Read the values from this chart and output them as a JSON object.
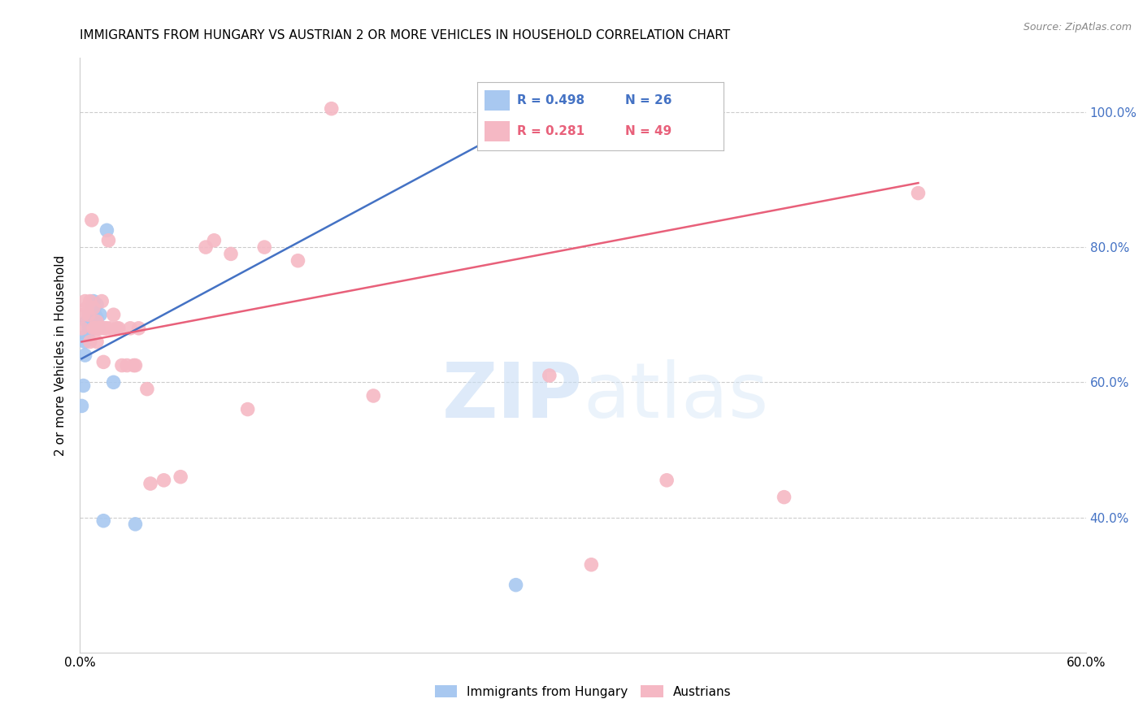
{
  "title": "IMMIGRANTS FROM HUNGARY VS AUSTRIAN 2 OR MORE VEHICLES IN HOUSEHOLD CORRELATION CHART",
  "source": "Source: ZipAtlas.com",
  "ylabel": "2 or more Vehicles in Household",
  "xlim": [
    0.0,
    0.6
  ],
  "ylim": [
    0.2,
    1.08
  ],
  "xtick_vals": [
    0.0,
    0.1,
    0.2,
    0.3,
    0.4,
    0.5,
    0.6
  ],
  "ytick_vals": [
    1.0,
    0.8,
    0.6,
    0.4
  ],
  "ytick_labels": [
    "100.0%",
    "80.0%",
    "60.0%",
    "40.0%"
  ],
  "blue_R": "0.498",
  "blue_N": "26",
  "pink_R": "0.281",
  "pink_N": "49",
  "blue_color": "#a8c8f0",
  "pink_color": "#f5b8c4",
  "blue_line_color": "#4472c4",
  "pink_line_color": "#e8607a",
  "legend_blue_label": "Immigrants from Hungary",
  "legend_pink_label": "Austrians",
  "watermark_zip": "ZIP",
  "watermark_atlas": "atlas",
  "blue_points_x": [
    0.001,
    0.002,
    0.003,
    0.003,
    0.004,
    0.004,
    0.005,
    0.005,
    0.005,
    0.006,
    0.006,
    0.007,
    0.007,
    0.008,
    0.008,
    0.009,
    0.009,
    0.01,
    0.01,
    0.011,
    0.012,
    0.014,
    0.016,
    0.02,
    0.033,
    0.26
  ],
  "blue_points_y": [
    0.565,
    0.595,
    0.64,
    0.66,
    0.67,
    0.69,
    0.665,
    0.68,
    0.7,
    0.68,
    0.7,
    0.69,
    0.71,
    0.7,
    0.72,
    0.685,
    0.7,
    0.695,
    0.715,
    0.68,
    0.7,
    0.395,
    0.825,
    0.6,
    0.39,
    0.3
  ],
  "pink_points_x": [
    0.001,
    0.002,
    0.003,
    0.004,
    0.005,
    0.006,
    0.006,
    0.007,
    0.008,
    0.008,
    0.009,
    0.01,
    0.01,
    0.011,
    0.012,
    0.013,
    0.014,
    0.014,
    0.015,
    0.016,
    0.017,
    0.018,
    0.02,
    0.022,
    0.023,
    0.025,
    0.028,
    0.03,
    0.032,
    0.033,
    0.035,
    0.04,
    0.042,
    0.05,
    0.06,
    0.075,
    0.08,
    0.09,
    0.1,
    0.11,
    0.13,
    0.15,
    0.175,
    0.28,
    0.305,
    0.31,
    0.35,
    0.42,
    0.5
  ],
  "pink_points_y": [
    0.68,
    0.7,
    0.72,
    0.71,
    0.7,
    0.72,
    0.66,
    0.84,
    0.71,
    0.68,
    0.68,
    0.69,
    0.66,
    0.68,
    0.68,
    0.72,
    0.68,
    0.63,
    0.68,
    0.68,
    0.81,
    0.68,
    0.7,
    0.68,
    0.68,
    0.625,
    0.625,
    0.68,
    0.625,
    0.625,
    0.68,
    0.59,
    0.45,
    0.455,
    0.46,
    0.8,
    0.81,
    0.79,
    0.56,
    0.8,
    0.78,
    1.005,
    0.58,
    0.61,
    0.33,
    1.005,
    0.455,
    0.43,
    0.88
  ],
  "blue_line_x0": 0.001,
  "blue_line_x1": 0.26,
  "blue_line_y0": 0.635,
  "blue_line_y1": 0.98,
  "pink_line_x0": 0.001,
  "pink_line_x1": 0.5,
  "pink_line_y0": 0.66,
  "pink_line_y1": 0.895
}
